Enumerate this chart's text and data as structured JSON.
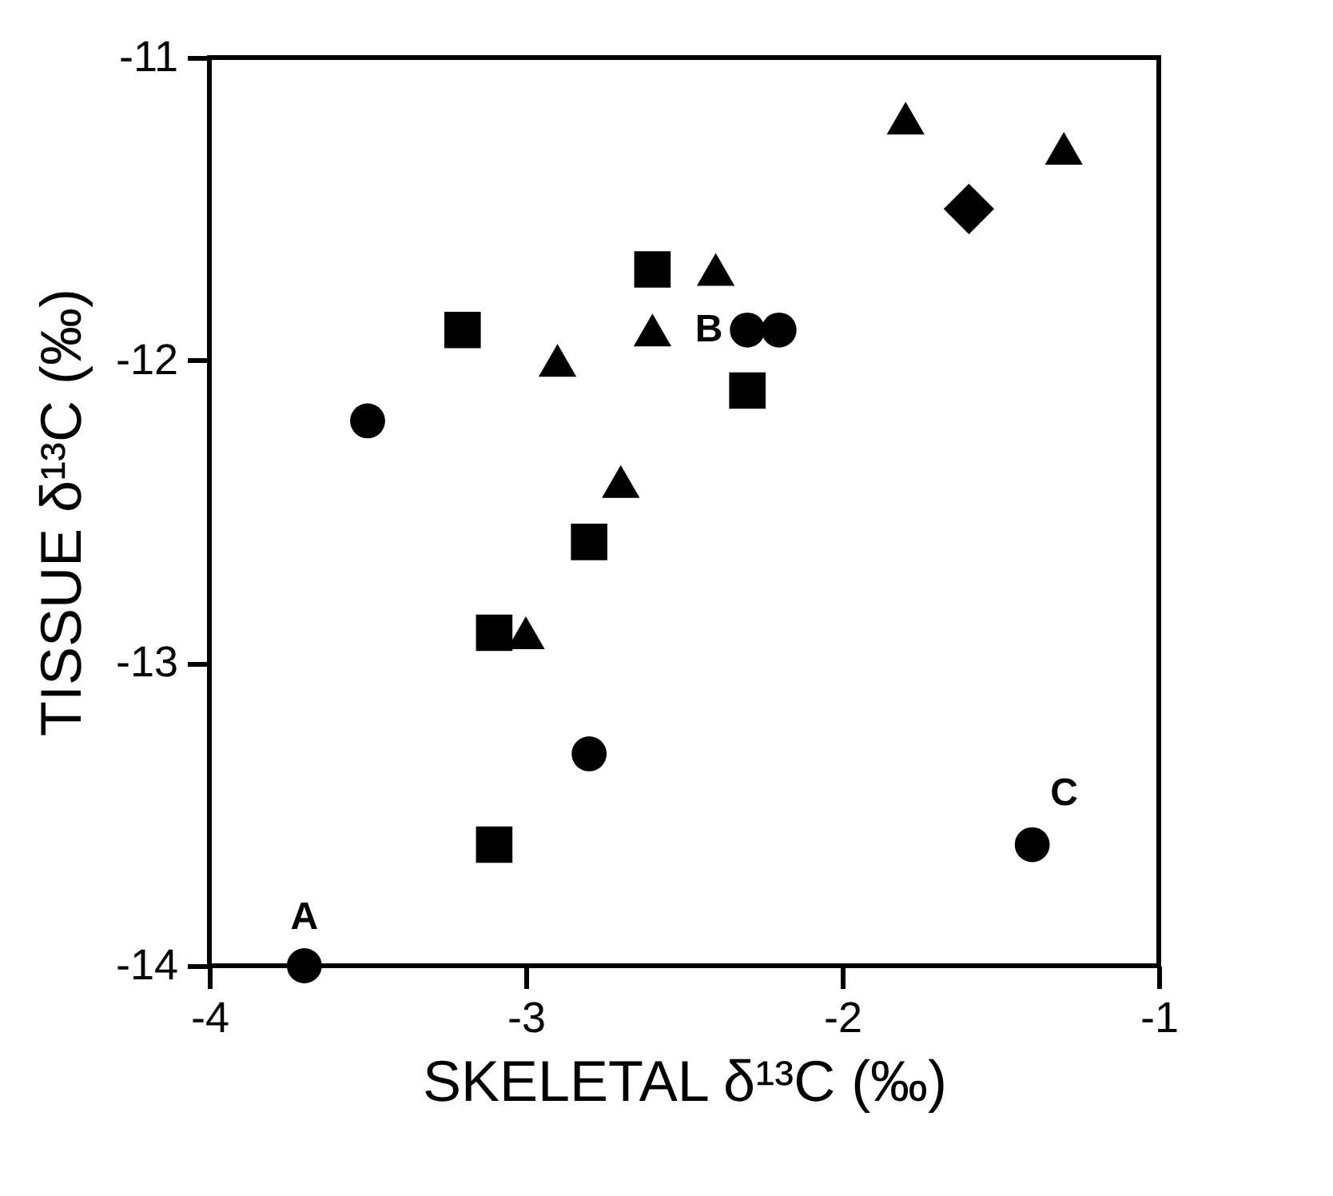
{
  "chart_data": {
    "type": "scatter",
    "xlabel": "SKELETAL δ¹³C (‰)",
    "ylabel": "TISSUE δ¹³C (‰)",
    "xlim": [
      -4,
      -1
    ],
    "xticks": [
      -4,
      -3,
      -2,
      -1
    ],
    "ylim": [
      -14,
      -11
    ],
    "yticks": [
      -14,
      -13,
      -12,
      -11
    ],
    "grid": false,
    "series": [
      {
        "color": "#000000",
        "marker": "circle",
        "x": [
          -3.7,
          -3.5,
          -2.8,
          -2.3,
          -2.2,
          -1.4
        ],
        "values": [
          -14,
          -12.2,
          -13.3,
          -11.9,
          -11.9,
          -13.6
        ]
      },
      {
        "color": "#000000",
        "marker": "square",
        "x": [
          -3.2,
          -2.6,
          -2.3,
          -2.8,
          -3.1,
          -3.1
        ],
        "values": [
          -11.9,
          -11.7,
          -12.1,
          -12.6,
          -12.9,
          -13.6
        ]
      },
      {
        "color": "#000000",
        "marker": "triangle",
        "x": [
          -2.9,
          -2.6,
          -2.7,
          -3.0,
          -2.4,
          -1.8,
          -1.3
        ],
        "values": [
          -12.0,
          -11.9,
          -12.4,
          -12.9,
          -11.7,
          -11.2,
          -11.3
        ]
      },
      {
        "color": "#000000",
        "marker": "diamond",
        "x": [
          -1.6
        ],
        "values": [
          -11.5
        ]
      }
    ],
    "annotations": [
      {
        "text": "A",
        "x": -3.7,
        "y": -14
      },
      {
        "text": "B",
        "x": -2.3,
        "y": -11.9
      },
      {
        "text": "C",
        "x": -1.4,
        "y": -13.6
      }
    ]
  }
}
